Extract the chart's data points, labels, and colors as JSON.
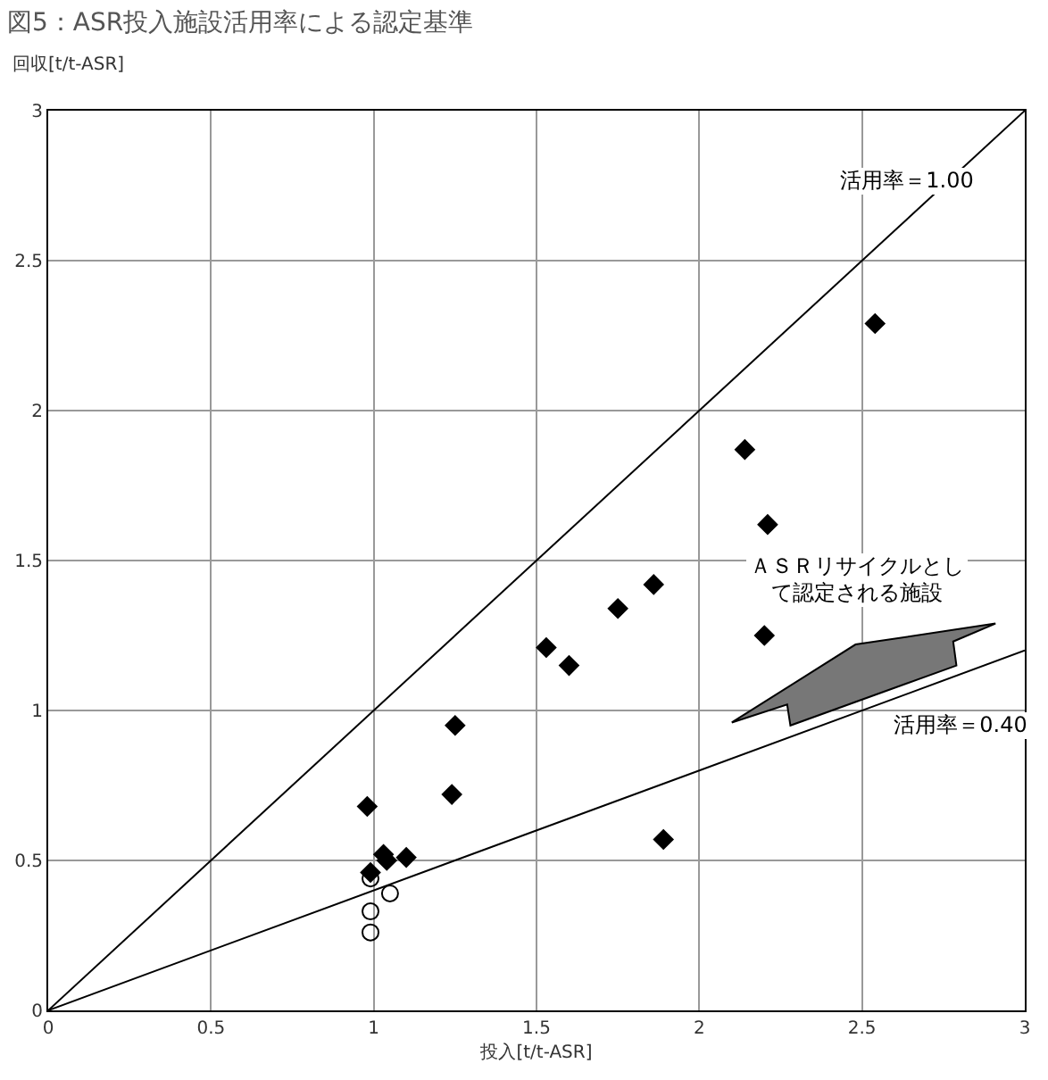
{
  "chart_data": {
    "type": "scatter",
    "title": "図5：ASR投入施設活用率による認定基準",
    "xlabel": "投入[t/t-ASR]",
    "ylabel": "回収[t/t-ASR]",
    "xlim": [
      0,
      3
    ],
    "ylim": [
      0,
      3
    ],
    "xticks": [
      0,
      0.5,
      1,
      1.5,
      2,
      2.5,
      3
    ],
    "yticks": [
      0,
      0.5,
      1,
      1.5,
      2,
      2.5,
      3
    ],
    "grid": true,
    "series": [
      {
        "marker": "diamond",
        "color": "#000000",
        "x": [
          0.98,
          0.99,
          1.03,
          1.04,
          1.1,
          1.24,
          1.25,
          1.53,
          1.6,
          1.75,
          1.86,
          1.89,
          2.14,
          2.2,
          2.21,
          2.54
        ],
        "values": [
          0.68,
          0.46,
          0.52,
          0.5,
          0.51,
          0.72,
          0.95,
          1.21,
          1.15,
          1.34,
          1.42,
          0.57,
          1.87,
          1.25,
          1.62,
          2.29
        ]
      },
      {
        "marker": "circle-open",
        "color": "#000000",
        "x": [
          0.99,
          1.05,
          0.99,
          0.99
        ],
        "values": [
          0.44,
          0.39,
          0.33,
          0.26
        ]
      },
      {
        "type": "line",
        "marker": "none",
        "color": "#000000",
        "x": [
          0,
          3
        ],
        "values": [
          0,
          3
        ]
      },
      {
        "type": "line",
        "marker": "none",
        "color": "#000000",
        "x": [
          0,
          3
        ],
        "values": [
          0,
          1.2
        ]
      }
    ],
    "annotations": [
      "活用率＝1.00",
      "活用率＝0.40",
      "ＡＳＲリサイクルとして認定される施設"
    ]
  }
}
